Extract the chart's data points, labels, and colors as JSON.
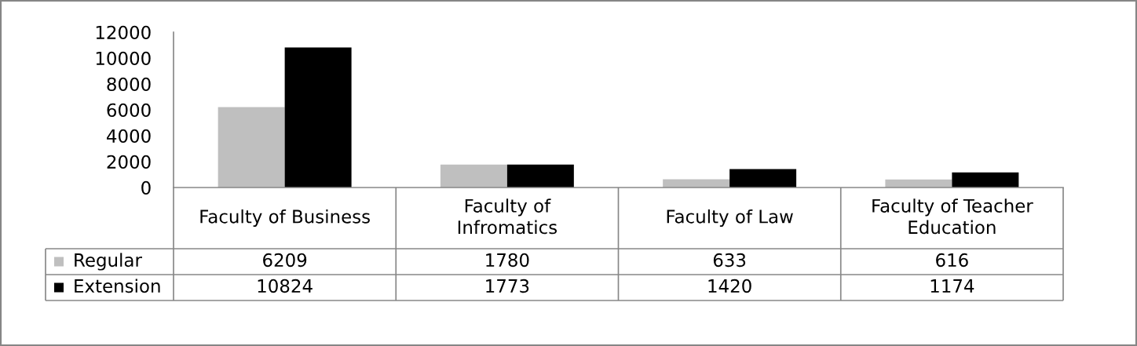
{
  "chart_data": {
    "type": "bar",
    "categories": [
      "Faculty of Business",
      "Faculty of\nInfromatics",
      "Faculty of Law",
      "Faculty of Teacher\nEducation"
    ],
    "series": [
      {
        "name": "Regular",
        "color": "#bfbfbf",
        "values": [
          6209,
          1780,
          633,
          616
        ]
      },
      {
        "name": "Extension",
        "color": "#000000",
        "values": [
          10824,
          1773,
          1420,
          1174
        ]
      }
    ],
    "ylim": [
      0,
      12000
    ],
    "yticks": [
      0,
      2000,
      4000,
      6000,
      8000,
      10000,
      12000
    ],
    "legend": "bottom left",
    "data_labels": true
  }
}
